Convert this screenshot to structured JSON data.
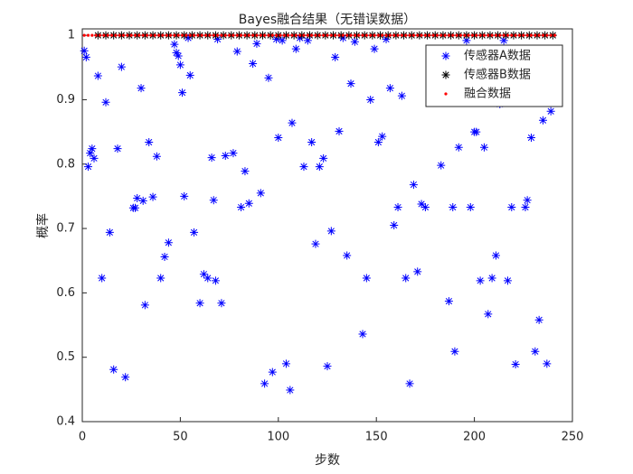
{
  "chart_data": {
    "type": "scatter",
    "title": "Bayes融合结果（无错误数据）",
    "x_label": "步数",
    "y_label": "概率",
    "xlim": [
      0,
      250
    ],
    "ylim": [
      0.4,
      1.01
    ],
    "xticks": [
      0,
      50,
      100,
      150,
      200,
      250
    ],
    "yticks": [
      0.4,
      0.5,
      0.6,
      0.7,
      0.8,
      0.9,
      1
    ],
    "grid": false,
    "legend": "northeast",
    "series": [
      {
        "name": "传感器A数据",
        "color": "#0000ff",
        "marker": "*",
        "x": [
          1,
          2,
          3,
          4,
          5,
          6,
          8,
          10,
          12,
          14,
          16,
          18,
          20,
          22,
          26,
          27,
          28,
          30,
          31,
          32,
          34,
          36,
          38,
          40,
          42,
          44,
          47,
          48,
          49,
          50,
          51,
          52,
          54,
          55,
          57,
          60,
          62,
          64,
          66,
          67,
          68,
          69,
          71,
          73,
          77,
          79,
          81,
          83,
          85,
          87,
          89,
          91,
          93,
          95,
          97,
          99,
          100,
          102,
          104,
          106,
          107,
          109,
          111,
          113,
          115,
          117,
          119,
          121,
          123,
          125,
          127,
          129,
          131,
          133,
          135,
          137,
          139,
          143,
          145,
          147,
          149,
          151,
          153,
          155,
          157,
          159,
          161,
          163,
          165,
          167,
          169,
          171,
          173,
          175,
          183,
          187,
          189,
          190,
          192,
          196,
          198,
          200,
          201,
          203,
          205,
          207,
          209,
          211,
          213,
          215,
          217,
          219,
          221,
          226,
          227,
          229,
          231,
          233,
          235,
          237,
          239
        ],
        "values": [
          0.976,
          0.966,
          0.796,
          0.817,
          0.824,
          0.809,
          0.937,
          0.623,
          0.896,
          0.694,
          0.481,
          0.824,
          0.951,
          0.469,
          0.732,
          0.732,
          0.747,
          0.918,
          0.743,
          0.581,
          0.834,
          0.749,
          0.812,
          0.623,
          0.656,
          0.678,
          0.986,
          0.973,
          0.968,
          0.954,
          0.911,
          0.75,
          0.996,
          0.938,
          0.694,
          0.584,
          0.629,
          0.623,
          0.81,
          0.744,
          0.619,
          0.994,
          0.584,
          0.813,
          0.817,
          0.975,
          0.733,
          0.789,
          0.739,
          0.956,
          0.987,
          0.755,
          0.459,
          0.934,
          0.477,
          0.994,
          0.841,
          0.992,
          0.49,
          0.449,
          0.864,
          0.979,
          0.996,
          0.796,
          0.992,
          0.834,
          0.676,
          0.796,
          0.809,
          0.486,
          0.696,
          0.966,
          0.851,
          0.996,
          0.658,
          0.925,
          0.99,
          0.536,
          0.623,
          0.9,
          0.979,
          0.834,
          0.843,
          0.994,
          0.918,
          0.705,
          0.733,
          0.906,
          0.623,
          0.459,
          0.768,
          0.633,
          0.738,
          0.733,
          0.798,
          0.587,
          0.733,
          0.509,
          0.826,
          0.992,
          0.733,
          0.85,
          0.85,
          0.619,
          0.826,
          0.567,
          0.623,
          0.658,
          0.893,
          0.992,
          0.619,
          0.733,
          0.489,
          0.733,
          0.744,
          0.841,
          0.509,
          0.558,
          0.868,
          0.49,
          0.882
        ]
      },
      {
        "name": "传感器B数据",
        "color": "#000000",
        "marker": "*",
        "x": [
          8,
          12,
          16,
          20,
          24,
          28,
          32,
          36,
          40,
          44,
          48,
          52,
          56,
          60,
          64,
          68,
          72,
          76,
          80,
          84,
          88,
          92,
          96,
          100,
          104,
          108,
          112,
          116,
          120,
          124,
          128,
          132,
          136,
          140,
          144,
          148,
          152,
          156,
          160,
          164,
          168,
          172,
          176,
          180,
          184,
          188,
          192,
          196,
          200,
          204,
          208,
          212,
          216,
          220,
          224,
          228,
          232,
          236,
          240
        ],
        "values": [
          1,
          1,
          1,
          1,
          1,
          1,
          1,
          1,
          1,
          1,
          1,
          1,
          1,
          1,
          1,
          1,
          1,
          1,
          1,
          1,
          1,
          1,
          1,
          1,
          1,
          1,
          1,
          1,
          1,
          1,
          1,
          1,
          1,
          1,
          1,
          1,
          1,
          1,
          1,
          1,
          1,
          1,
          1,
          1,
          1,
          1,
          1,
          1,
          1,
          1,
          1,
          1,
          1,
          1,
          1,
          1,
          1,
          1,
          1
        ]
      },
      {
        "name": "融合数据",
        "color": "#ff0000",
        "marker": ".",
        "x": [
          1,
          3,
          5,
          7,
          9,
          11,
          13,
          15,
          17,
          19,
          21,
          23,
          25,
          27,
          29,
          31,
          33,
          35,
          37,
          39,
          41,
          43,
          45,
          47,
          49,
          51,
          53,
          55,
          57,
          59,
          61,
          63,
          65,
          67,
          69,
          71,
          73,
          75,
          77,
          79,
          81,
          83,
          85,
          87,
          89,
          91,
          93,
          95,
          97,
          99,
          101,
          103,
          105,
          107,
          109,
          111,
          113,
          115,
          117,
          119,
          121,
          123,
          125,
          127,
          129,
          131,
          133,
          135,
          137,
          139,
          141,
          143,
          145,
          147,
          149,
          151,
          153,
          155,
          157,
          159,
          161,
          163,
          165,
          167,
          169,
          171,
          173,
          175,
          177,
          179,
          181,
          183,
          185,
          187,
          189,
          191,
          193,
          195,
          197,
          199,
          201,
          203,
          205,
          207,
          209,
          211,
          213,
          215,
          217,
          219,
          221,
          223,
          225,
          227,
          229,
          231,
          233,
          235,
          237,
          239,
          241
        ],
        "values": [
          1,
          1,
          1,
          1,
          1,
          1,
          1,
          1,
          1,
          1,
          1,
          1,
          1,
          1,
          1,
          1,
          1,
          1,
          1,
          1,
          1,
          1,
          1,
          1,
          1,
          1,
          1,
          1,
          1,
          1,
          1,
          1,
          1,
          1,
          1,
          1,
          1,
          1,
          1,
          1,
          1,
          1,
          1,
          1,
          1,
          1,
          1,
          1,
          1,
          1,
          1,
          1,
          1,
          1,
          1,
          1,
          1,
          1,
          1,
          1,
          1,
          1,
          1,
          1,
          1,
          1,
          1,
          1,
          1,
          1,
          1,
          1,
          1,
          1,
          1,
          1,
          1,
          1,
          1,
          1,
          1,
          1,
          1,
          1,
          1,
          1,
          1,
          1,
          1,
          1,
          1,
          1,
          1,
          1,
          1,
          1,
          1,
          1,
          1,
          1,
          1,
          1,
          1,
          1,
          1,
          1,
          1,
          1,
          1,
          1,
          1,
          1,
          1,
          1,
          1,
          1,
          1,
          1,
          1,
          1,
          1
        ]
      }
    ]
  }
}
